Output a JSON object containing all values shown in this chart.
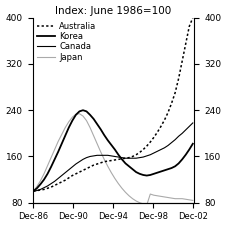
{
  "title": "Index: June 1986=100",
  "ylim": [
    80,
    400
  ],
  "yticks": [
    80,
    160,
    240,
    320,
    400
  ],
  "xtick_labels": [
    "Dec-86",
    "Dec-90",
    "Dec-94",
    "Dec-98",
    "Dec-02"
  ],
  "australia": [
    100,
    101,
    102,
    103,
    105,
    107,
    110,
    113,
    116,
    119,
    123,
    127,
    130,
    133,
    136,
    139,
    142,
    145,
    147,
    149,
    151,
    152,
    153,
    154,
    155,
    156,
    157,
    158,
    160,
    163,
    167,
    172,
    178,
    185,
    193,
    202,
    212,
    223,
    236,
    252,
    270,
    295,
    325,
    355,
    385,
    400
  ],
  "korea": [
    100,
    105,
    112,
    120,
    130,
    142,
    155,
    168,
    182,
    196,
    210,
    222,
    232,
    238,
    240,
    238,
    232,
    225,
    216,
    207,
    197,
    188,
    180,
    172,
    163,
    155,
    148,
    143,
    138,
    133,
    130,
    128,
    127,
    128,
    130,
    132,
    134,
    136,
    138,
    140,
    143,
    148,
    155,
    163,
    172,
    182
  ],
  "canada": [
    100,
    101,
    103,
    106,
    109,
    113,
    117,
    122,
    127,
    132,
    137,
    142,
    147,
    151,
    155,
    158,
    160,
    161,
    162,
    162,
    162,
    162,
    161,
    160,
    159,
    158,
    157,
    157,
    157,
    157,
    158,
    159,
    161,
    163,
    166,
    169,
    172,
    175,
    179,
    184,
    189,
    195,
    200,
    206,
    212,
    218
  ],
  "japan": [
    100,
    108,
    118,
    130,
    144,
    158,
    172,
    186,
    198,
    210,
    220,
    228,
    233,
    234,
    230,
    222,
    210,
    196,
    182,
    168,
    155,
    143,
    132,
    122,
    113,
    105,
    98,
    92,
    87,
    83,
    80,
    78,
    76,
    95,
    93,
    92,
    91,
    90,
    89,
    88,
    87,
    87,
    87,
    86,
    85,
    84
  ],
  "n_points": 46,
  "australia_color": "#000000",
  "korea_color": "#000000",
  "canada_color": "#000000",
  "japan_color": "#aaaaaa",
  "background_color": "#ffffff",
  "legend_labels": [
    "Australia",
    "Korea",
    "Canada",
    "Japan"
  ]
}
